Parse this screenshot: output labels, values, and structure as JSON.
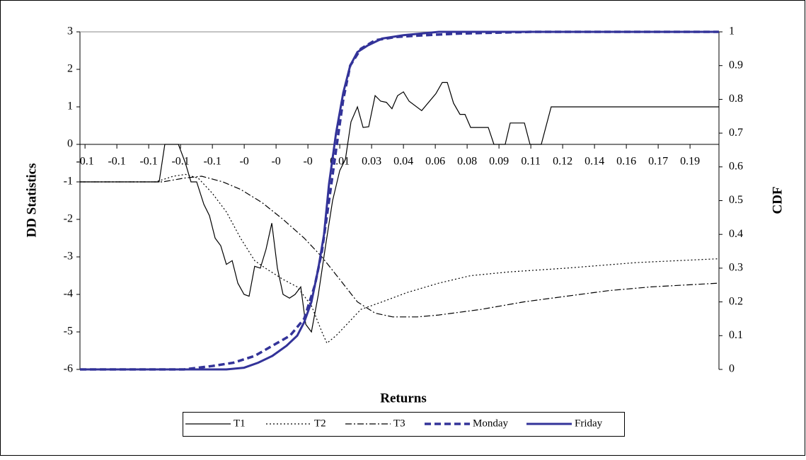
{
  "chart_data": {
    "type": "line",
    "x_label": "Returns",
    "y_label": "DD Statistics",
    "y2_label": "CDF",
    "xlim": [
      -0.1238,
      0.2053
    ],
    "xticks": [
      {
        "value": -0.1212,
        "label": "-0.1"
      },
      {
        "value": -0.1048,
        "label": "-0.1"
      },
      {
        "value": -0.0884,
        "label": "-0.1"
      },
      {
        "value": -0.072,
        "label": "-0.1"
      },
      {
        "value": -0.0556,
        "label": "-0.1"
      },
      {
        "value": -0.0392,
        "label": "-0"
      },
      {
        "value": -0.0228,
        "label": "-0"
      },
      {
        "value": -0.0064,
        "label": "-0"
      },
      {
        "value": 0.01,
        "label": "0.01"
      },
      {
        "value": 0.0264,
        "label": "0.03"
      },
      {
        "value": 0.0428,
        "label": "0.04"
      },
      {
        "value": 0.0592,
        "label": "0.06"
      },
      {
        "value": 0.0756,
        "label": "0.08"
      },
      {
        "value": 0.092,
        "label": "0.09"
      },
      {
        "value": 0.1084,
        "label": "0.11"
      },
      {
        "value": 0.1248,
        "label": "0.12"
      },
      {
        "value": 0.1412,
        "label": "0.14"
      },
      {
        "value": 0.1576,
        "label": "0.16"
      },
      {
        "value": 0.174,
        "label": "0.17"
      },
      {
        "value": 0.1904,
        "label": "0.19"
      }
    ],
    "ylim": [
      -6,
      3
    ],
    "yticks": [
      -6,
      -5,
      -4,
      -3,
      -2,
      -1,
      0,
      1,
      2,
      3
    ],
    "y2lim": [
      0,
      1
    ],
    "y2ticks": [
      0,
      0.1,
      0.2,
      0.3,
      0.4,
      0.5,
      0.6,
      0.7,
      0.8,
      0.9,
      1
    ],
    "legend": "bottom",
    "series": [
      {
        "name": "T1",
        "color": "#000000",
        "style": "solid",
        "width": 1.2,
        "x": [
          -0.1238,
          -0.083,
          -0.0801,
          -0.0731,
          -0.0695,
          -0.0666,
          -0.0637,
          -0.06,
          -0.0571,
          -0.0542,
          -0.0513,
          -0.0484,
          -0.0454,
          -0.0425,
          -0.0393,
          -0.0367,
          -0.0338,
          -0.0309,
          -0.028,
          -0.025,
          -0.0221,
          -0.0192,
          -0.0159,
          -0.013,
          -0.0101,
          -0.0075,
          -0.0046,
          -0.001,
          0.0027,
          0.0063,
          0.01,
          0.0129,
          0.0158,
          0.0191,
          0.022,
          0.0249,
          0.0282,
          0.0311,
          0.034,
          0.0369,
          0.0398,
          0.0428,
          0.0457,
          0.0522,
          0.0595,
          0.0628,
          0.0654,
          0.0686,
          0.0719,
          0.0745,
          0.0774,
          0.0865,
          0.0894,
          0.0952,
          0.0978,
          0.1051,
          0.108,
          0.1138,
          0.1189,
          0.2053
        ],
        "values": [
          -1,
          -1,
          0,
          0,
          -0.5,
          -1,
          -1,
          -1.6,
          -1.9,
          -2.5,
          -2.7,
          -3.2,
          -3.1,
          -3.7,
          -4,
          -4.05,
          -3.25,
          -3.3,
          -2.8,
          -2.1,
          -3.3,
          -4,
          -4.1,
          -4,
          -3.8,
          -4.8,
          -5,
          -4,
          -2.7,
          -1.5,
          -0.7,
          -0.4,
          0.6,
          1,
          0.45,
          0.47,
          1.3,
          1.15,
          1.12,
          0.95,
          1.3,
          1.4,
          1.15,
          0.9,
          1.35,
          1.65,
          1.65,
          1.1,
          0.8,
          0.8,
          0.45,
          0.45,
          0,
          0,
          0.57,
          0.57,
          0,
          0,
          1,
          1
        ]
      },
      {
        "name": "T2",
        "color": "#000000",
        "style": "dotted",
        "width": 1.2,
        "x": [
          -0.1238,
          -0.0848,
          -0.0757,
          -0.0695,
          -0.0629,
          -0.0557,
          -0.0484,
          -0.0411,
          -0.0338,
          -0.0283,
          -0.0192,
          -0.0119,
          -0.0046,
          0.0008,
          0.0034,
          0.0081,
          0.0136,
          0.0209,
          0.0318,
          0.0446,
          0.061,
          0.0774,
          0.0974,
          0.1266,
          0.163,
          0.2053
        ],
        "values": [
          -1,
          -1,
          -0.85,
          -0.8,
          -0.9,
          -1.3,
          -1.8,
          -2.5,
          -3.1,
          -3.3,
          -3.6,
          -3.8,
          -4.3,
          -5,
          -5.3,
          -5.1,
          -4.8,
          -4.4,
          -4.2,
          -3.95,
          -3.7,
          -3.5,
          -3.4,
          -3.3,
          -3.15,
          -3.05
        ]
      },
      {
        "name": "T3",
        "color": "#000000",
        "style": "dashdot",
        "width": 1.2,
        "x": [
          -0.1238,
          -0.0812,
          -0.0702,
          -0.0611,
          -0.0502,
          -0.0411,
          -0.0301,
          -0.0192,
          -0.0083,
          0.0008,
          0.01,
          0.0191,
          0.0282,
          0.0373,
          0.05,
          0.061,
          0.0828,
          0.1047,
          0.1266,
          0.1484,
          0.1703,
          0.2053
        ],
        "values": [
          -1,
          -1,
          -0.9,
          -0.85,
          -1,
          -1.2,
          -1.55,
          -2,
          -2.5,
          -3,
          -3.6,
          -4.2,
          -4.5,
          -4.6,
          -4.6,
          -4.55,
          -4.4,
          -4.2,
          -4.05,
          -3.9,
          -3.8,
          -3.7
        ]
      },
      {
        "name": "Monday",
        "color": "#333399",
        "style": "dashed",
        "width": 3.5,
        "axis": "y2",
        "x": [
          -0.1238,
          -0.0702,
          -0.0557,
          -0.0447,
          -0.0338,
          -0.0247,
          -0.0156,
          -0.0083,
          -0.0028,
          0.0008,
          0.0045,
          0.0081,
          0.0118,
          0.0154,
          0.0209,
          0.0282,
          0.0391,
          0.0537,
          0.0719,
          0.1084,
          0.2053
        ],
        "values": [
          0,
          0,
          0.01,
          0.02,
          0.04,
          0.07,
          0.1,
          0.15,
          0.25,
          0.35,
          0.5,
          0.65,
          0.8,
          0.9,
          0.95,
          0.975,
          0.985,
          0.99,
          0.995,
          1,
          1
        ]
      },
      {
        "name": "Friday",
        "color": "#333399",
        "style": "solid",
        "width": 3,
        "axis": "y2",
        "x": [
          -0.1238,
          -0.0484,
          -0.0393,
          -0.032,
          -0.0247,
          -0.0174,
          -0.0119,
          -0.0083,
          -0.0046,
          -0.001,
          0.0019,
          0.0045,
          0.0081,
          0.0118,
          0.0154,
          0.0191,
          0.0245,
          0.0318,
          0.0428,
          0.061,
          0.2053
        ],
        "values": [
          0,
          0,
          0.005,
          0.02,
          0.04,
          0.07,
          0.1,
          0.14,
          0.2,
          0.3,
          0.4,
          0.55,
          0.7,
          0.82,
          0.9,
          0.94,
          0.96,
          0.98,
          0.99,
          1,
          1
        ]
      }
    ]
  }
}
